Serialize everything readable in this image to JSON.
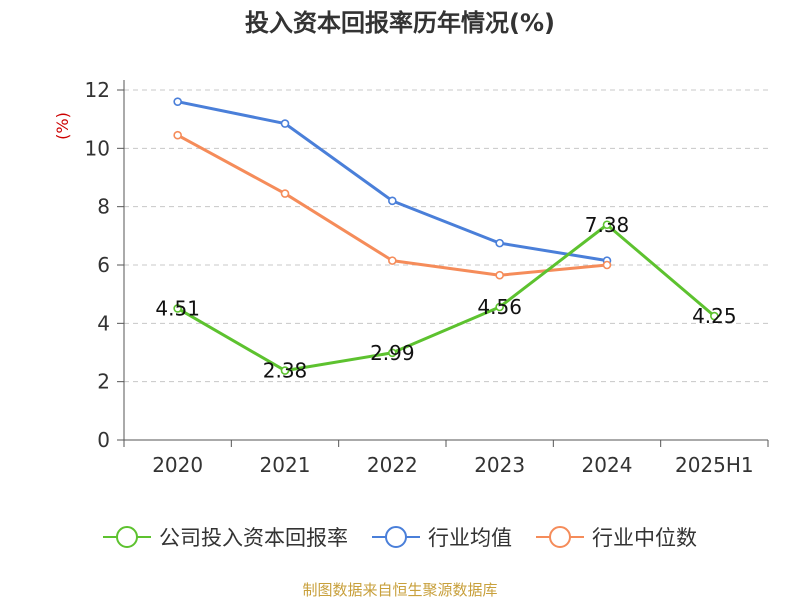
{
  "chart_data": {
    "type": "line",
    "title": "投入资本回报率历年情况(%)",
    "ylabel": "(%)",
    "xlabel": "",
    "categories": [
      "2020",
      "2021",
      "2022",
      "2023",
      "2024",
      "2025H1"
    ],
    "ylim": [
      0,
      12
    ],
    "yticks": [
      0,
      2,
      4,
      6,
      8,
      10,
      12
    ],
    "grid": true,
    "legend_position": "bottom",
    "series": [
      {
        "name": "公司投入资本回报率",
        "color": "#5dc22f",
        "values": [
          4.51,
          2.38,
          2.99,
          4.56,
          7.38,
          4.25
        ],
        "labels": [
          "4.51",
          "2.38",
          "2.99",
          "4.56",
          "7.38",
          "4.25"
        ]
      },
      {
        "name": "行业均值",
        "color": "#4a7fd9",
        "values": [
          11.6,
          10.85,
          8.2,
          6.75,
          6.15,
          null
        ]
      },
      {
        "name": "行业中位数",
        "color": "#f58c5a",
        "values": [
          10.45,
          8.45,
          6.15,
          5.65,
          6.0,
          null
        ]
      }
    ]
  },
  "source": {
    "text": "制图数据来自恒生聚源数据库",
    "color": "#c8a03c"
  },
  "ylabel_color": "#cc0000"
}
